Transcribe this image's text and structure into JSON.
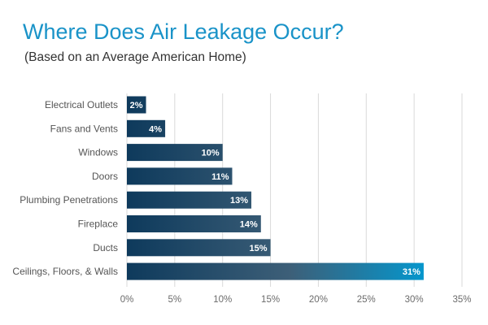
{
  "chart_data": {
    "type": "bar",
    "orientation": "horizontal",
    "title": "Where Does Air Leakage Occur?",
    "subtitle": "(Based on an Average American Home)",
    "categories": [
      "Electrical Outlets",
      "Fans and Vents",
      "Windows",
      "Doors",
      "Plumbing Penetrations",
      "Fireplace",
      "Ducts",
      "Ceilings, Floors, & Walls"
    ],
    "values": [
      2,
      4,
      10,
      11,
      13,
      14,
      15,
      31
    ],
    "data_labels": [
      "2%",
      "4%",
      "10%",
      "11%",
      "13%",
      "14%",
      "15%",
      "31%"
    ],
    "xlim": [
      0,
      35
    ],
    "x_ticks": [
      0,
      5,
      10,
      15,
      20,
      25,
      30,
      35
    ],
    "x_tick_labels": [
      "0%",
      "5%",
      "10%",
      "15%",
      "20%",
      "25%",
      "30%",
      "35%"
    ],
    "xlabel": "",
    "ylabel": "",
    "grid": true,
    "legend": "none",
    "colors": {
      "title": "#1a93c8",
      "bar_dark": "#0e3a5c",
      "bar_mid": "#3d5f78",
      "bar_bright": "#0596cc",
      "grid": "#d9d9d9"
    }
  }
}
